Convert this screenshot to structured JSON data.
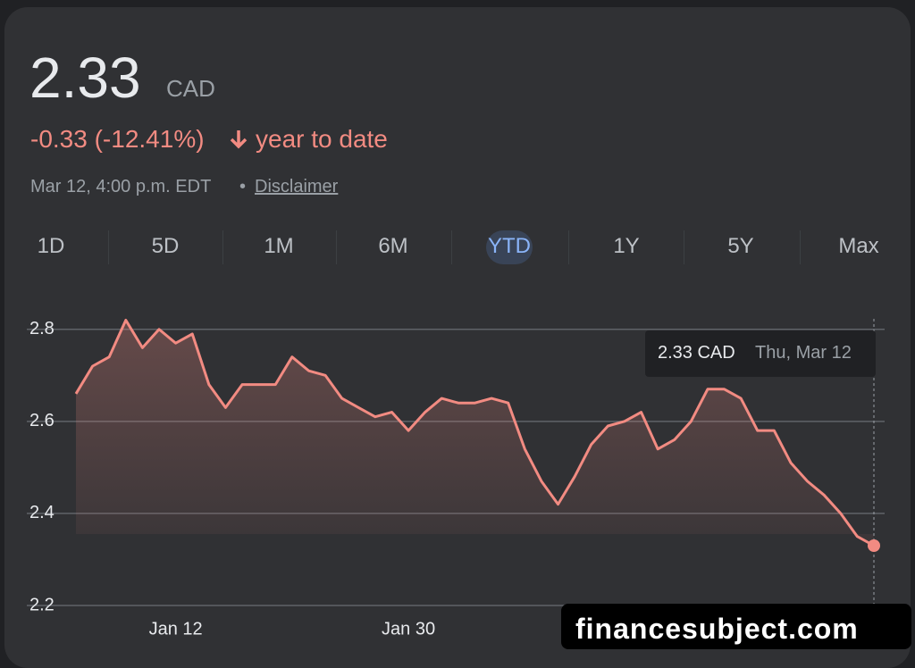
{
  "header": {
    "price": "2.33",
    "currency": "CAD",
    "change": "-0.33 (-12.41%)",
    "period": "year to date",
    "timestamp": "Mar 12, 4:00 p.m. EDT",
    "separator": "•",
    "disclaimer": "Disclaimer"
  },
  "tabs": {
    "items": [
      "1D",
      "5D",
      "1M",
      "6M",
      "YTD",
      "1Y",
      "5Y",
      "Max"
    ],
    "selected": "YTD"
  },
  "tooltip": {
    "value": "2.33 CAD",
    "date": "Thu, Mar 12"
  },
  "watermark": "financesubject.com",
  "chart_data": {
    "type": "area",
    "categories": [
      null,
      null,
      null,
      null,
      null,
      null,
      "Jan 12",
      null,
      null,
      null,
      null,
      null,
      null,
      null,
      null,
      null,
      null,
      null,
      null,
      null,
      "Jan 30",
      null,
      null,
      null,
      null,
      null,
      null,
      null,
      null,
      null,
      null,
      null,
      null,
      null,
      null,
      null,
      null,
      null,
      null,
      null,
      null,
      null,
      null,
      null,
      null,
      null,
      null,
      null,
      null
    ],
    "series": [
      {
        "name": "Price",
        "color": "#f28b82",
        "values": [
          2.66,
          2.72,
          2.74,
          2.82,
          2.76,
          2.8,
          2.77,
          2.79,
          2.68,
          2.63,
          2.68,
          2.68,
          2.68,
          2.74,
          2.71,
          2.7,
          2.65,
          2.63,
          2.61,
          2.62,
          2.58,
          2.62,
          2.65,
          2.64,
          2.64,
          2.65,
          2.64,
          2.54,
          2.47,
          2.42,
          2.48,
          2.55,
          2.59,
          2.6,
          2.62,
          2.54,
          2.56,
          2.6,
          2.67,
          2.67,
          2.65,
          2.58,
          2.58,
          2.51,
          2.47,
          2.44,
          2.4,
          2.35,
          2.33
        ]
      }
    ],
    "ylim": [
      2.2,
      2.85
    ],
    "yticks": [
      2.2,
      2.4,
      2.6,
      2.8
    ],
    "grid": true
  }
}
